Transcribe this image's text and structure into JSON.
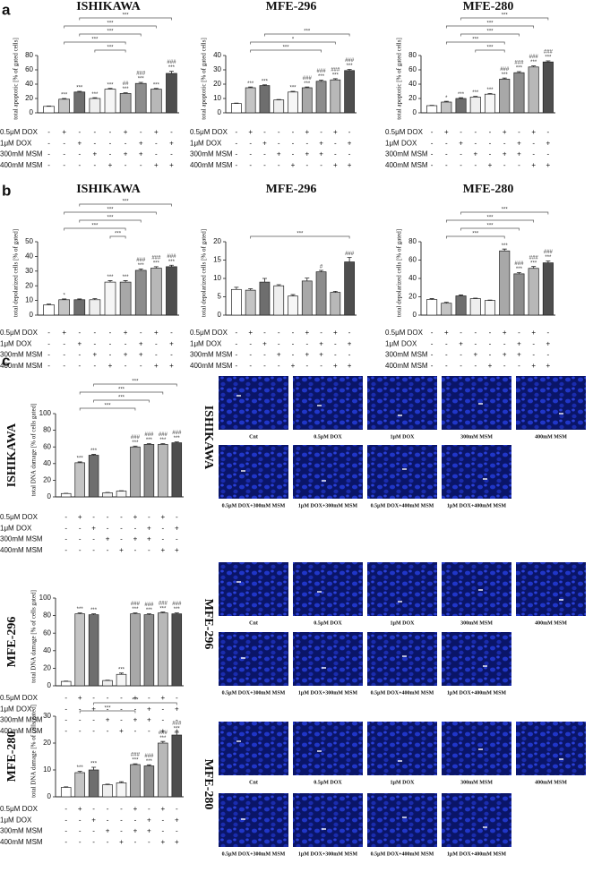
{
  "panel_labels": [
    "a",
    "b",
    "c"
  ],
  "bar_colors": [
    "#ffffff",
    "#c4c4c4",
    "#6e6e6e",
    "#eeeeee",
    "#f6f6f6",
    "#a8a8a8",
    "#8c8c8c",
    "#b8b8b8",
    "#4e4e4e"
  ],
  "treatments": {
    "rows": [
      {
        "label": "0.5μM DOX",
        "signs": [
          "-",
          "+",
          "-",
          "-",
          "-",
          "+",
          "-",
          "+",
          "-"
        ]
      },
      {
        "label": "1μM DOX",
        "signs": [
          "-",
          "-",
          "+",
          "-",
          "-",
          "-",
          "+",
          "-",
          "+"
        ]
      },
      {
        "label": "300mM MSM",
        "signs": [
          "-",
          "-",
          "-",
          "+",
          "-",
          "+",
          "+",
          "-",
          "-"
        ]
      },
      {
        "label": "400mM MSM",
        "signs": [
          "-",
          "-",
          "-",
          "-",
          "+",
          "-",
          "-",
          "+",
          "+"
        ]
      }
    ]
  },
  "chart_data": [
    {
      "type": "bar",
      "title": "ISHIKAWA",
      "y_label": "total apoptotic [% of gated cells]",
      "ylim": [
        0,
        80
      ],
      "yticks": [
        0,
        20,
        40,
        60,
        80
      ],
      "values": [
        9,
        19,
        29,
        20,
        33,
        27,
        41,
        33,
        55
      ],
      "errors": [
        0.5,
        1,
        1,
        1,
        1,
        1,
        1.5,
        1,
        3
      ],
      "annotations": [
        [],
        [
          "***"
        ],
        [
          "***"
        ],
        [
          "***"
        ],
        [
          "***"
        ],
        [
          "##",
          "***"
        ],
        [
          "###",
          "***"
        ],
        [
          "***"
        ],
        [
          "###",
          "***"
        ]
      ],
      "brackets": [
        {
          "from": 2,
          "to": 8,
          "label": "***"
        },
        {
          "from": 1,
          "to": 7,
          "label": "***"
        },
        {
          "from": 2,
          "to": 6,
          "label": "***"
        },
        {
          "from": 1,
          "to": 5,
          "label": "***"
        },
        {
          "from": 3,
          "to": 5,
          "label": "***"
        }
      ]
    },
    {
      "type": "bar",
      "title": "MFE-296",
      "y_label": "total apoptotic [% of gated cells]",
      "ylim": [
        0,
        40
      ],
      "yticks": [
        0,
        10,
        20,
        30,
        40
      ],
      "values": [
        6.5,
        17.5,
        19,
        9,
        14.5,
        17.5,
        22,
        23,
        29.5
      ],
      "errors": [
        0.3,
        0.5,
        0.5,
        0.3,
        0.5,
        0.5,
        0.8,
        0.8,
        0.8
      ],
      "annotations": [
        [],
        [
          "***"
        ],
        [
          "***"
        ],
        [],
        [
          "***"
        ],
        [
          "###",
          "***"
        ],
        [
          "###",
          "***"
        ],
        [
          "###",
          "***"
        ],
        [
          "###",
          "***"
        ]
      ],
      "brackets": [
        {
          "from": 2,
          "to": 8,
          "label": "***"
        },
        {
          "from": 1,
          "to": 7,
          "label": "*"
        },
        {
          "from": 1,
          "to": 6,
          "label": "***"
        }
      ]
    },
    {
      "type": "bar",
      "title": "MFE-280",
      "y_label": "total apoptotic [% of gated cells]",
      "ylim": [
        0,
        80
      ],
      "yticks": [
        0,
        20,
        40,
        60,
        80
      ],
      "values": [
        10,
        15,
        20,
        22,
        26,
        47,
        56,
        64,
        71
      ],
      "errors": [
        0.5,
        1,
        1,
        1,
        1,
        1.5,
        1.5,
        1.5,
        1.5
      ],
      "annotations": [
        [],
        [
          "*"
        ],
        [
          "***"
        ],
        [
          "***"
        ],
        [
          "***"
        ],
        [
          "###",
          "***"
        ],
        [
          "###",
          "***"
        ],
        [
          "###",
          "***"
        ],
        [
          "###",
          "***"
        ]
      ],
      "brackets": [
        {
          "from": 2,
          "to": 8,
          "label": "***"
        },
        {
          "from": 1,
          "to": 7,
          "label": "***"
        },
        {
          "from": 2,
          "to": 6,
          "label": "***"
        },
        {
          "from": 1,
          "to": 5,
          "label": "***"
        },
        {
          "from": 3,
          "to": 5,
          "label": "***"
        }
      ]
    },
    {
      "type": "bar",
      "title": "ISHIKAWA",
      "y_label": "total depolarized cells [% of gated]",
      "ylim": [
        0,
        50
      ],
      "yticks": [
        0,
        10,
        20,
        30,
        40,
        50
      ],
      "values": [
        7,
        10.5,
        10.5,
        10.5,
        22.5,
        22.5,
        30.5,
        32,
        33
      ],
      "errors": [
        0.5,
        0.5,
        0.5,
        0.8,
        1,
        1,
        1,
        1,
        1
      ],
      "annotations": [
        [],
        [
          "*"
        ],
        [],
        [],
        [
          "***"
        ],
        [
          "***"
        ],
        [
          "###",
          "***"
        ],
        [
          "###",
          "***"
        ],
        [
          "###",
          "***"
        ]
      ],
      "brackets": [
        {
          "from": 2,
          "to": 8,
          "label": "***"
        },
        {
          "from": 1,
          "to": 7,
          "label": "***"
        },
        {
          "from": 2,
          "to": 6,
          "label": "***"
        },
        {
          "from": 1,
          "to": 5,
          "label": "***"
        },
        {
          "from": 4,
          "to": 5,
          "label": "***"
        }
      ]
    },
    {
      "type": "bar",
      "title": "MFE-296",
      "y_label": "total depolarized cells [% of gated]",
      "ylim": [
        0,
        20
      ],
      "yticks": [
        0,
        5,
        10,
        15,
        20
      ],
      "values": [
        7,
        6.8,
        9,
        8,
        5.2,
        9.3,
        11.8,
        6.2,
        14.5
      ],
      "errors": [
        0.6,
        0.4,
        1,
        0.3,
        0.4,
        0.8,
        0.4,
        0.3,
        1.2
      ],
      "annotations": [
        [],
        [],
        [],
        [],
        [],
        [],
        [
          "#"
        ],
        [],
        [
          "###"
        ]
      ],
      "brackets": [
        {
          "from": 1,
          "to": 8,
          "label": "***"
        }
      ]
    },
    {
      "type": "bar",
      "title": "MFE-280",
      "y_label": "total depolarized cells [% of gated]",
      "ylim": [
        0,
        80
      ],
      "yticks": [
        0,
        20,
        40,
        60,
        80
      ],
      "values": [
        17,
        13,
        21,
        18,
        16,
        70,
        45,
        51,
        57
      ],
      "errors": [
        1,
        1,
        1,
        0.5,
        0.5,
        2,
        1.5,
        2,
        2
      ],
      "annotations": [
        [],
        [],
        [],
        [],
        [],
        [
          "***"
        ],
        [
          "###",
          "***"
        ],
        [
          "###",
          "***"
        ],
        [
          "###",
          "***"
        ]
      ],
      "brackets": [
        {
          "from": 2,
          "to": 8,
          "label": "***"
        },
        {
          "from": 1,
          "to": 7,
          "label": "***"
        },
        {
          "from": 2,
          "to": 6,
          "label": "***"
        },
        {
          "from": 1,
          "to": 5,
          "label": "***"
        }
      ]
    },
    {
      "type": "bar",
      "title": "ISHIKAWA",
      "y_label": "total DNA damage [% of cells gated]",
      "ylim": [
        0,
        100
      ],
      "yticks": [
        0,
        20,
        40,
        60,
        80,
        100
      ],
      "values": [
        4,
        41,
        50,
        5,
        7,
        60,
        63,
        63,
        65
      ],
      "errors": [
        0.3,
        1,
        1,
        0.3,
        0.3,
        1,
        1,
        1,
        1
      ],
      "annotations": [
        [],
        [
          "***"
        ],
        [
          "***"
        ],
        [],
        [],
        [
          "###",
          "***"
        ],
        [
          "###",
          "***"
        ],
        [
          "###",
          "***"
        ],
        [
          "###",
          "***"
        ]
      ],
      "brackets": [
        {
          "from": 2,
          "to": 8,
          "label": "***"
        },
        {
          "from": 1,
          "to": 7,
          "label": "***"
        },
        {
          "from": 2,
          "to": 6,
          "label": "***"
        },
        {
          "from": 1,
          "to": 5,
          "label": "***"
        }
      ]
    },
    {
      "type": "bar",
      "title": "MFE-296",
      "y_label": "total DNA damage [% of cells gated]",
      "ylim": [
        0,
        100
      ],
      "yticks": [
        0,
        20,
        40,
        60,
        80,
        100
      ],
      "values": [
        5,
        82,
        81,
        6,
        13,
        82,
        81,
        83,
        82
      ],
      "errors": [
        0.3,
        1,
        1,
        0.3,
        1.5,
        1,
        1,
        1,
        1
      ],
      "annotations": [
        [],
        [
          "***"
        ],
        [
          "***"
        ],
        [],
        [
          "***"
        ],
        [
          "###",
          "***"
        ],
        [
          "###",
          "***"
        ],
        [
          "###",
          "***"
        ],
        [
          "###",
          "***"
        ]
      ],
      "brackets": []
    },
    {
      "type": "bar",
      "title": "MFE-280",
      "y_label": "total DNA damage [% of cells gated]",
      "ylim": [
        0,
        30
      ],
      "yticks": [
        0,
        10,
        20,
        30
      ],
      "values": [
        3.5,
        9,
        10,
        4.5,
        5.2,
        12,
        11.5,
        20,
        23
      ],
      "errors": [
        0.2,
        0.5,
        1,
        0.2,
        0.4,
        0.3,
        0.4,
        0.6,
        1
      ],
      "annotations": [
        [],
        [
          "***"
        ],
        [
          "***"
        ],
        [],
        [],
        [
          "###",
          "***"
        ],
        [
          "###",
          "***"
        ],
        [
          "###",
          "***"
        ],
        [
          "###",
          "***"
        ]
      ],
      "brackets": [
        {
          "from": 2,
          "to": 8,
          "label": "***"
        },
        {
          "from": 1,
          "to": 5,
          "label": "***"
        }
      ]
    }
  ],
  "image_grids": [
    {
      "label": "ISHIKAWA",
      "captions": [
        "Cnt",
        "0.5μM DOX",
        "1μM DOX",
        "300mM MSM",
        "400mM MSM",
        "0.5μM DOX+300mM MSM",
        "1μM DOX+300mM MSM",
        "0.5μM DOX+400mM MSM",
        "1μM DOX+400mM MSM"
      ]
    },
    {
      "label": "MFE-296",
      "captions": [
        "Cnt",
        "0.5μM DOX",
        "1μM DOX",
        "300mM MSM",
        "400mM MSM",
        "0.5μM DOX+300mM MSM",
        "1μM DOX+300mM MSM",
        "0.5μM DOX+400mM MSM",
        "1μM DOX+400mM MSM"
      ]
    },
    {
      "label": "MFE-280",
      "captions": [
        "Cnt",
        "0.5μM DOX",
        "1μM DOX",
        "300mM MSM",
        "400mM MSM",
        "0.5μM DOX+300mM MSM",
        "1μM DOX+300mM MSM",
        "0.5μM DOX+400mM MSM",
        "1μM DOX+400mM MSM"
      ]
    }
  ]
}
